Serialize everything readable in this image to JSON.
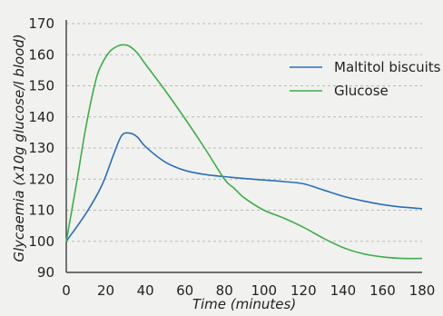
{
  "chart_data": {
    "type": "line",
    "title": "",
    "xlabel": "Time (minutes)",
    "ylabel": "Glycaemia (x10g glucose/l blood)",
    "xlim": [
      0,
      180
    ],
    "ylim": [
      90,
      170
    ],
    "xticks": [
      0,
      20,
      40,
      60,
      80,
      100,
      120,
      140,
      160,
      180
    ],
    "yticks": [
      90,
      100,
      110,
      120,
      130,
      140,
      150,
      160,
      170
    ],
    "grid": "horizontal dashed",
    "legend_position": "top-right",
    "series": [
      {
        "name": "Maltitol biscuits",
        "color": "#2a6ebb",
        "x": [
          0,
          10,
          18,
          24,
          28,
          32,
          36,
          40,
          50,
          60,
          70,
          80,
          90,
          100,
          110,
          120,
          130,
          140,
          150,
          160,
          170,
          180
        ],
        "y": [
          100,
          109,
          118,
          128,
          134,
          134.8,
          133.5,
          130.5,
          125.5,
          122.8,
          121.5,
          120.8,
          120.2,
          119.7,
          119.2,
          118.5,
          116.5,
          114.5,
          113,
          111.8,
          111,
          110.5
        ]
      },
      {
        "name": "Glucose",
        "color": "#3dae49",
        "x": [
          0,
          5,
          10,
          15,
          18,
          22,
          26,
          29,
          32,
          36,
          40,
          50,
          60,
          70,
          80,
          85,
          90,
          100,
          110,
          120,
          130,
          140,
          150,
          160,
          170,
          180
        ],
        "y": [
          100,
          118,
          137,
          152,
          157,
          161,
          162.8,
          163.2,
          162.7,
          160.5,
          157,
          148.5,
          139.5,
          130,
          120,
          117,
          114,
          110,
          107.5,
          104.5,
          101,
          98,
          96,
          95,
          94.5,
          94.5
        ]
      }
    ]
  }
}
